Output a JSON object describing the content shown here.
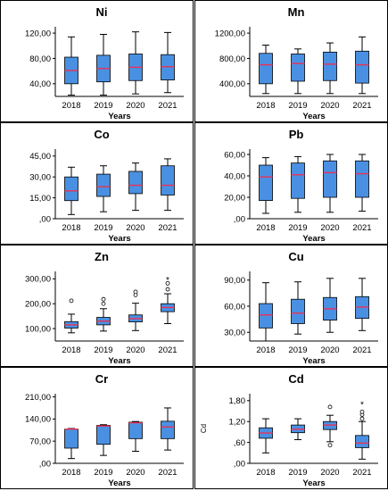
{
  "chart_data": [
    {
      "type": "box",
      "title": "Ni",
      "xlabel": "Years",
      "ylabel": "",
      "categories": [
        "2018",
        "2019",
        "2020",
        "2021"
      ],
      "ylim": [
        20,
        130
      ],
      "yticks": [
        40,
        80,
        120
      ],
      "ytick_labels": [
        "40,00",
        "80,00",
        "120,00"
      ],
      "boxes": [
        {
          "min": 22,
          "q1": 40,
          "median": 61,
          "q3": 82,
          "max": 114,
          "outliers": [],
          "extremes": []
        },
        {
          "min": 22,
          "q1": 43,
          "median": 64,
          "q3": 85,
          "max": 118,
          "outliers": [],
          "extremes": []
        },
        {
          "min": 24,
          "q1": 45,
          "median": 66,
          "q3": 87,
          "max": 122,
          "outliers": [],
          "extremes": []
        },
        {
          "min": 26,
          "q1": 46,
          "median": 67,
          "q3": 86,
          "max": 121,
          "outliers": [],
          "extremes": []
        }
      ]
    },
    {
      "type": "box",
      "title": "Mn",
      "xlabel": "Years",
      "ylabel": "",
      "categories": [
        "2018",
        "2019",
        "2020",
        "2021"
      ],
      "ylim": [
        200,
        1300
      ],
      "yticks": [
        400,
        800,
        1200
      ],
      "ytick_labels": [
        "400,00",
        "800,00",
        "1200,00"
      ],
      "boxes": [
        {
          "min": 245,
          "q1": 400,
          "median": 700,
          "q3": 880,
          "max": 1010,
          "outliers": [],
          "extremes": []
        },
        {
          "min": 245,
          "q1": 440,
          "median": 720,
          "q3": 870,
          "max": 950,
          "outliers": [],
          "extremes": []
        },
        {
          "min": 245,
          "q1": 450,
          "median": 710,
          "q3": 900,
          "max": 1045,
          "outliers": [],
          "extremes": []
        },
        {
          "min": 245,
          "q1": 410,
          "median": 700,
          "q3": 915,
          "max": 1140,
          "outliers": [],
          "extremes": []
        }
      ]
    },
    {
      "type": "box",
      "title": "Co",
      "xlabel": "Years",
      "ylabel": "",
      "categories": [
        "2018",
        "2019",
        "2020",
        "2021"
      ],
      "ylim": [
        0,
        50
      ],
      "yticks": [
        0,
        15,
        30,
        45
      ],
      "ytick_labels": [
        ",00",
        "15,00",
        "30,00",
        "45,00"
      ],
      "boxes": [
        {
          "min": 3,
          "q1": 13,
          "median": 20,
          "q3": 30,
          "max": 37,
          "outliers": [],
          "extremes": []
        },
        {
          "min": 5,
          "q1": 16,
          "median": 23,
          "q3": 32,
          "max": 38,
          "outliers": [],
          "extremes": []
        },
        {
          "min": 6,
          "q1": 18,
          "median": 24,
          "q3": 34,
          "max": 40,
          "outliers": [],
          "extremes": []
        },
        {
          "min": 6,
          "q1": 17,
          "median": 24,
          "q3": 38,
          "max": 43,
          "outliers": [],
          "extremes": []
        }
      ]
    },
    {
      "type": "box",
      "title": "Pb",
      "xlabel": "Years",
      "ylabel": "",
      "categories": [
        "2018",
        "2019",
        "2020",
        "2021"
      ],
      "ylim": [
        0,
        65
      ],
      "yticks": [
        0,
        20,
        40,
        60
      ],
      "ytick_labels": [
        ",00",
        "20,00",
        "40,00",
        "60,00"
      ],
      "boxes": [
        {
          "min": 5,
          "q1": 17,
          "median": 39,
          "q3": 50,
          "max": 57,
          "outliers": [],
          "extremes": []
        },
        {
          "min": 6,
          "q1": 19,
          "median": 41,
          "q3": 52,
          "max": 58,
          "outliers": [],
          "extremes": []
        },
        {
          "min": 6,
          "q1": 20,
          "median": 43,
          "q3": 54,
          "max": 60,
          "outliers": [],
          "extremes": []
        },
        {
          "min": 7,
          "q1": 20,
          "median": 42,
          "q3": 54,
          "max": 60,
          "outliers": [],
          "extremes": []
        }
      ]
    },
    {
      "type": "box",
      "title": "Zn",
      "xlabel": "Years",
      "ylabel": "",
      "categories": [
        "2018",
        "2019",
        "2020",
        "2021"
      ],
      "ylim": [
        50,
        330
      ],
      "yticks": [
        100,
        200,
        300
      ],
      "ytick_labels": [
        "100,00",
        "200,00",
        "300,00"
      ],
      "boxes": [
        {
          "min": 83,
          "q1": 102,
          "median": 115,
          "q3": 128,
          "max": 158,
          "outliers": [
            212
          ],
          "extremes": []
        },
        {
          "min": 90,
          "q1": 115,
          "median": 130,
          "q3": 145,
          "max": 180,
          "outliers": [
            200,
            218
          ],
          "extremes": []
        },
        {
          "min": 92,
          "q1": 127,
          "median": 140,
          "q3": 155,
          "max": 202,
          "outliers": [
            235,
            248
          ],
          "extremes": []
        },
        {
          "min": 120,
          "q1": 168,
          "median": 185,
          "q3": 200,
          "max": 240,
          "outliers": [
            258,
            282
          ],
          "extremes": [
            297
          ]
        }
      ]
    },
    {
      "type": "box",
      "title": "Cu",
      "xlabel": "Years",
      "ylabel": "",
      "categories": [
        "2018",
        "2019",
        "2020",
        "2021"
      ],
      "ylim": [
        20,
        100
      ],
      "yticks": [
        30,
        60,
        90
      ],
      "ytick_labels": [
        "30,00",
        "60,00",
        "90,00"
      ],
      "boxes": [
        {
          "min": 20,
          "q1": 35,
          "median": 50,
          "q3": 63,
          "max": 87,
          "outliers": [],
          "extremes": []
        },
        {
          "min": 28,
          "q1": 40,
          "median": 52,
          "q3": 68,
          "max": 88,
          "outliers": [],
          "extremes": []
        },
        {
          "min": 30,
          "q1": 44,
          "median": 57,
          "q3": 70,
          "max": 92,
          "outliers": [],
          "extremes": []
        },
        {
          "min": 32,
          "q1": 46,
          "median": 59,
          "q3": 71,
          "max": 92,
          "outliers": [],
          "extremes": []
        }
      ]
    },
    {
      "type": "box",
      "title": "Cr",
      "xlabel": "Years",
      "ylabel": "",
      "categories": [
        "2018",
        "2019",
        "2020",
        "2021"
      ],
      "ylim": [
        0,
        220
      ],
      "yticks": [
        0,
        70,
        140,
        210
      ],
      "ytick_labels": [
        ",00",
        "70,00",
        "140,00",
        "210,00"
      ],
      "boxes": [
        {
          "min": 15,
          "q1": 48,
          "median": 108,
          "q3": 108,
          "max": 110,
          "outliers": [],
          "extremes": []
        },
        {
          "min": 25,
          "q1": 60,
          "median": 118,
          "q3": 120,
          "max": 122,
          "outliers": [],
          "extremes": []
        },
        {
          "min": 38,
          "q1": 78,
          "median": 128,
          "q3": 130,
          "max": 132,
          "outliers": [],
          "extremes": []
        },
        {
          "min": 42,
          "q1": 78,
          "median": 115,
          "q3": 133,
          "max": 175,
          "outliers": [],
          "extremes": []
        }
      ]
    },
    {
      "type": "box",
      "title": "Cd",
      "xlabel": "Years",
      "ylabel": "Cd",
      "categories": [
        "2018",
        "2019",
        "2020",
        "2021"
      ],
      "ylim": [
        0,
        2
      ],
      "yticks": [
        0,
        0.6,
        1.2,
        1.8
      ],
      "ytick_labels": [
        ",00",
        ",60",
        "1,20",
        "1,80"
      ],
      "boxes": [
        {
          "min": 0.3,
          "q1": 0.72,
          "median": 0.87,
          "q3": 1.02,
          "max": 1.28,
          "outliers": [],
          "extremes": []
        },
        {
          "min": 0.68,
          "q1": 0.88,
          "median": 0.98,
          "q3": 1.1,
          "max": 1.28,
          "outliers": [],
          "extremes": []
        },
        {
          "min": 0.62,
          "q1": 0.97,
          "median": 1.1,
          "q3": 1.2,
          "max": 1.38,
          "outliers": [
            0.52,
            1.62
          ],
          "extremes": []
        },
        {
          "min": 0.12,
          "q1": 0.45,
          "median": 0.58,
          "q3": 0.8,
          "max": 1.2,
          "outliers": [
            1.28,
            1.4,
            1.48
          ],
          "extremes": [
            1.7
          ]
        }
      ]
    }
  ],
  "style": {
    "box_fill": "#4a90e2",
    "box_stroke": "#000000",
    "median_color": "#e8325a",
    "whisker_color": "#000000",
    "frame_color": "#000000"
  }
}
